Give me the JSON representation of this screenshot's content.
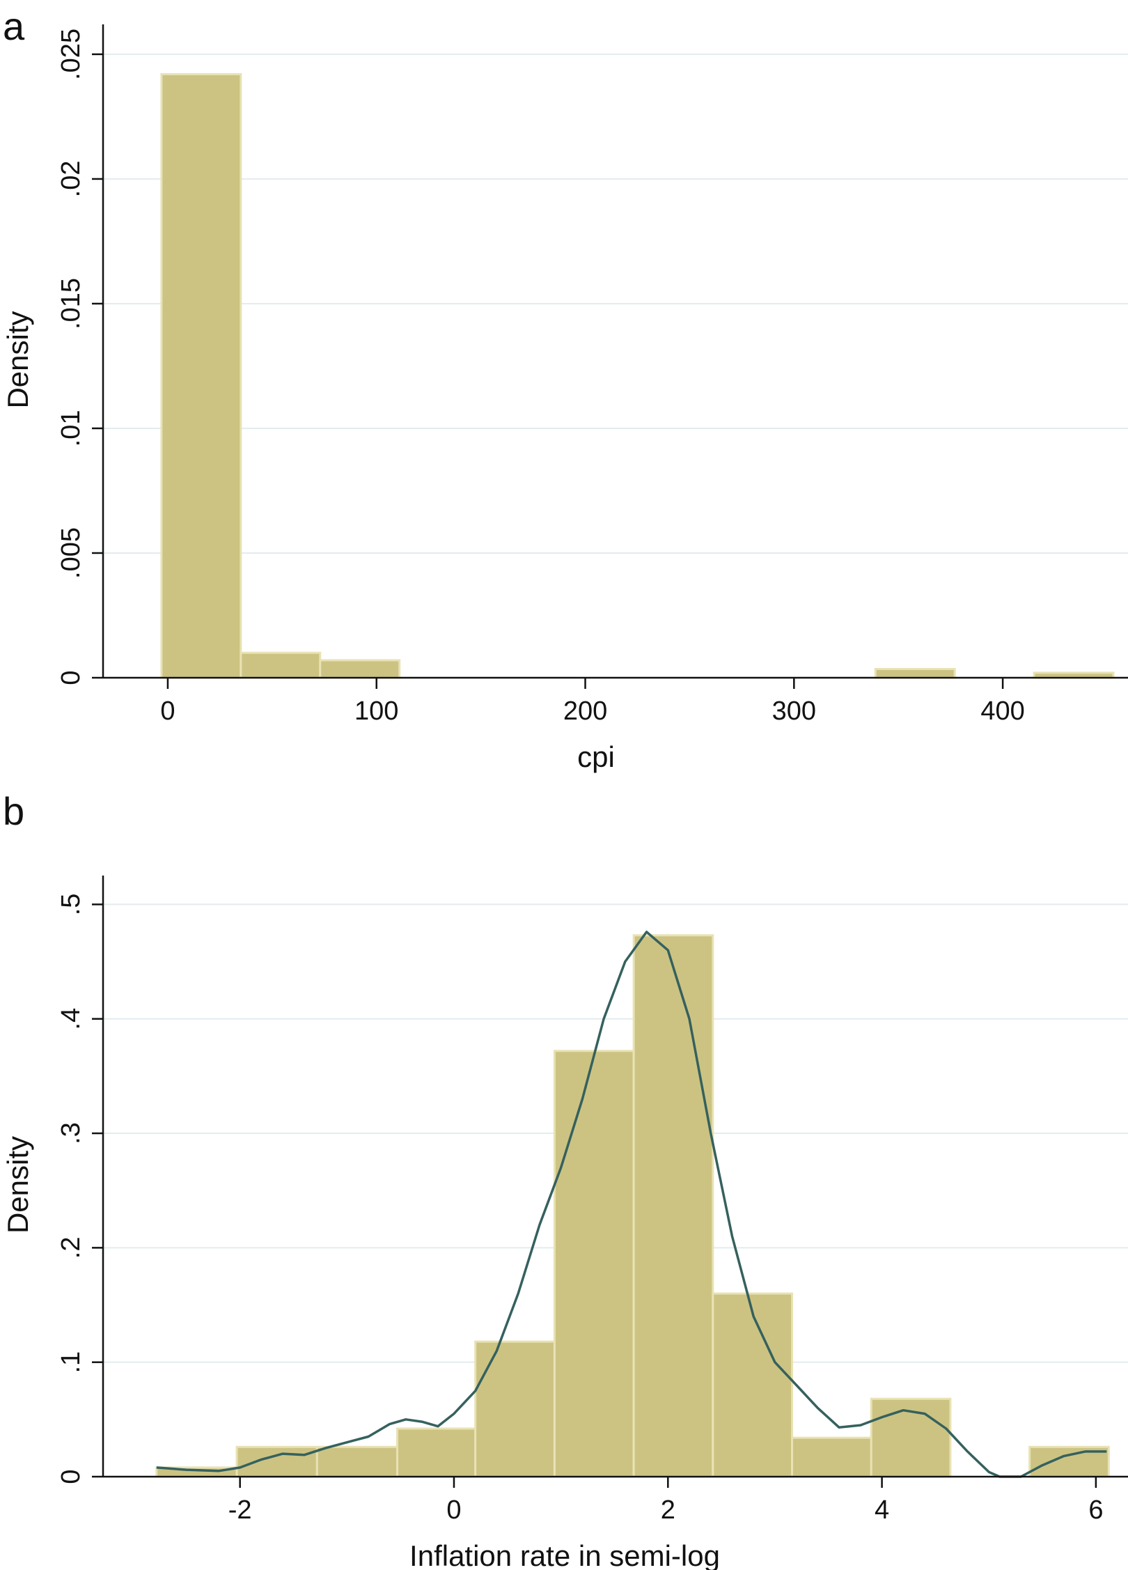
{
  "chart_data": [
    {
      "type": "bar",
      "panel_label": "a",
      "xlabel": "cpi",
      "ylabel": "Density",
      "xlim": [
        -31,
        460
      ],
      "ylim": [
        0,
        0.0255
      ],
      "x_ticks": [
        0,
        100,
        200,
        300,
        400
      ],
      "x_tick_labels": [
        "0",
        "100",
        "200",
        "300",
        "400"
      ],
      "y_ticks": [
        0,
        0.005,
        0.01,
        0.015,
        0.02,
        0.025
      ],
      "y_tick_labels": [
        "0",
        ".005",
        ".01",
        ".015",
        ".02",
        ".025"
      ],
      "grid": true,
      "bins": [
        {
          "x0": -3,
          "x1": 35,
          "density": 0.0242
        },
        {
          "x0": 35,
          "x1": 73,
          "density": 0.001
        },
        {
          "x0": 73,
          "x1": 111,
          "density": 0.0007
        },
        {
          "x0": 111,
          "x1": 149,
          "density": 0
        },
        {
          "x0": 149,
          "x1": 187,
          "density": 0
        },
        {
          "x0": 187,
          "x1": 225,
          "density": 0
        },
        {
          "x0": 225,
          "x1": 263,
          "density": 0
        },
        {
          "x0": 263,
          "x1": 301,
          "density": 0
        },
        {
          "x0": 301,
          "x1": 339,
          "density": 0
        },
        {
          "x0": 339,
          "x1": 377,
          "density": 0.00035
        },
        {
          "x0": 377,
          "x1": 415,
          "density": 0
        },
        {
          "x0": 415,
          "x1": 453,
          "density": 0.0002
        }
      ],
      "colors": {
        "bar": "#ccc382",
        "bar_edge": "#e8e2b4",
        "grid": "#e3ecef",
        "axis": "#111111"
      }
    },
    {
      "type": "bar",
      "panel_label": "b",
      "xlabel": "Inflation rate in semi-log",
      "ylabel": "Density",
      "xlim": [
        -3.28,
        6.3
      ],
      "ylim": [
        0,
        0.51
      ],
      "x_ticks": [
        -2,
        0,
        2,
        4,
        6
      ],
      "x_tick_labels": [
        "-2",
        "0",
        "2",
        "4",
        "6"
      ],
      "y_ticks": [
        0,
        0.1,
        0.2,
        0.3,
        0.4,
        0.5
      ],
      "y_tick_labels": [
        "0",
        ".1",
        ".2",
        ".3",
        ".4",
        ".5"
      ],
      "grid": true,
      "bins": [
        {
          "x0": -2.78,
          "x1": -2.03,
          "density": 0.008
        },
        {
          "x0": -2.03,
          "x1": -1.28,
          "density": 0.026
        },
        {
          "x0": -1.28,
          "x1": -0.53,
          "density": 0.026
        },
        {
          "x0": -0.53,
          "x1": 0.2,
          "density": 0.042
        },
        {
          "x0": 0.2,
          "x1": 0.94,
          "density": 0.118
        },
        {
          "x0": 0.94,
          "x1": 1.68,
          "density": 0.372
        },
        {
          "x0": 1.68,
          "x1": 2.42,
          "density": 0.473
        },
        {
          "x0": 2.42,
          "x1": 3.16,
          "density": 0.16
        },
        {
          "x0": 3.16,
          "x1": 3.9,
          "density": 0.034
        },
        {
          "x0": 3.9,
          "x1": 4.64,
          "density": 0.068
        },
        {
          "x0": 4.64,
          "x1": 5.38,
          "density": 0
        },
        {
          "x0": 5.38,
          "x1": 6.12,
          "density": 0.026
        }
      ],
      "density_curve": {
        "x": [
          -2.78,
          -2.5,
          -2.2,
          -2.0,
          -1.8,
          -1.6,
          -1.4,
          -1.2,
          -1.0,
          -0.8,
          -0.6,
          -0.45,
          -0.3,
          -0.15,
          0.0,
          0.2,
          0.4,
          0.6,
          0.8,
          1.0,
          1.2,
          1.4,
          1.6,
          1.8,
          2.0,
          2.2,
          2.4,
          2.6,
          2.8,
          3.0,
          3.2,
          3.4,
          3.6,
          3.8,
          4.0,
          4.2,
          4.4,
          4.6,
          4.8,
          5.0,
          5.1,
          5.3,
          5.5,
          5.7,
          5.9,
          6.1
        ],
        "y": [
          0.008,
          0.006,
          0.005,
          0.008,
          0.015,
          0.02,
          0.019,
          0.025,
          0.03,
          0.035,
          0.046,
          0.05,
          0.048,
          0.044,
          0.055,
          0.075,
          0.11,
          0.16,
          0.22,
          0.27,
          0.33,
          0.4,
          0.45,
          0.476,
          0.46,
          0.4,
          0.3,
          0.21,
          0.14,
          0.1,
          0.08,
          0.06,
          0.043,
          0.045,
          0.052,
          0.058,
          0.055,
          0.042,
          0.022,
          0.004,
          0.0,
          0.0,
          0.01,
          0.018,
          0.022,
          0.022
        ]
      },
      "colors": {
        "bar": "#ccc382",
        "bar_edge": "#e8e2b4",
        "grid": "#e3ecef",
        "axis": "#111111",
        "curve": "#35615e"
      }
    }
  ]
}
